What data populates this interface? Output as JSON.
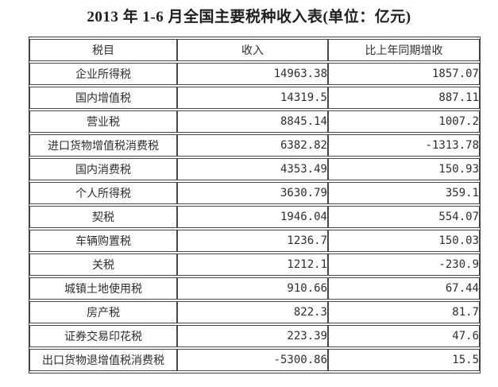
{
  "title": "2013 年 1-6 月全国主要税种收入表(单位：亿元)",
  "unit_label": "亿元",
  "colors": {
    "background": "#ffffff",
    "border": "#474747",
    "text": "#2e2e2e"
  },
  "table": {
    "headers": [
      "税目",
      "收入",
      "比上年同期增收"
    ],
    "rows": [
      {
        "item": "企业所得税",
        "revenue": "14963.38",
        "increase": "1857.07"
      },
      {
        "item": "国内增值税",
        "revenue": "14319.5",
        "increase": "887.11"
      },
      {
        "item": "营业税",
        "revenue": "8845.14",
        "increase": "1007.2"
      },
      {
        "item": "进口货物增值税消费税",
        "revenue": "6382.82",
        "increase": "-1313.78"
      },
      {
        "item": "国内消费税",
        "revenue": "4353.49",
        "increase": "150.93"
      },
      {
        "item": "个人所得税",
        "revenue": "3630.79",
        "increase": "359.1"
      },
      {
        "item": "契税",
        "revenue": "1946.04",
        "increase": "554.07"
      },
      {
        "item": "车辆购置税",
        "revenue": "1236.7",
        "increase": "150.03"
      },
      {
        "item": "关税",
        "revenue": "1212.1",
        "increase": "-230.9"
      },
      {
        "item": "城镇土地使用税",
        "revenue": "910.66",
        "increase": "67.44"
      },
      {
        "item": "房产税",
        "revenue": "822.3",
        "increase": "81.7"
      },
      {
        "item": "证券交易印花税",
        "revenue": "223.39",
        "increase": "47.6"
      },
      {
        "item": "出口货物退增值税消费税",
        "revenue": "-5300.86",
        "increase": "15.5"
      }
    ]
  }
}
